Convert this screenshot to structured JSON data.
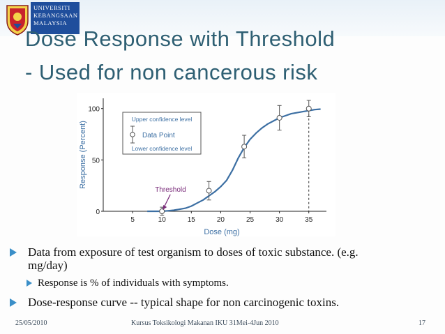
{
  "header": {
    "logo_lines": [
      "UNIVERSITI",
      "KEBANGSAAN",
      "MALAYSIA"
    ]
  },
  "slide": {
    "title_line1": "Dose Response with Threshold",
    "title_line2": "- Used for non cancerous risk"
  },
  "chart_data": {
    "type": "line",
    "title": "",
    "xlabel": "Dose (mg)",
    "ylabel": "Response (Percent)",
    "xlim": [
      0,
      38
    ],
    "ylim": [
      0,
      110
    ],
    "x_ticks": [
      5,
      10,
      15,
      20,
      25,
      30,
      35
    ],
    "y_ticks": [
      0,
      50,
      100
    ],
    "threshold_x": 10,
    "threshold_label": "Threshold",
    "dashed_x": 35,
    "curve": {
      "x": [
        10,
        11,
        12,
        13,
        14,
        15,
        16,
        17,
        18,
        19,
        20,
        21,
        22,
        23,
        24,
        25,
        26,
        27,
        28,
        29,
        30,
        31,
        32,
        33,
        34,
        35,
        36,
        37
      ],
      "y": [
        0,
        0.5,
        1,
        2,
        3,
        5,
        8,
        11,
        15,
        19,
        24,
        30,
        40,
        52,
        62,
        70,
        76,
        81,
        85,
        88,
        91,
        93,
        95,
        96,
        97,
        98,
        99,
        99.5
      ]
    },
    "data_points": [
      {
        "x": 10,
        "y": 0,
        "err": 4
      },
      {
        "x": 18,
        "y": 20,
        "err": 9
      },
      {
        "x": 24,
        "y": 63,
        "err": 11
      },
      {
        "x": 30,
        "y": 91,
        "err": 12
      },
      {
        "x": 35,
        "y": 100,
        "err": 8
      }
    ],
    "legend": {
      "upper": "Upper confidence level",
      "point": "Data Point",
      "lower": "Lower confidence level"
    },
    "colors": {
      "curve": "#3c6fa3",
      "axis_text": "#3c6fa3",
      "threshold_text": "#7a2c7a",
      "arrow": "#7a2c7a"
    }
  },
  "bullets": {
    "b1": "Data from exposure of test organism to doses of toxic substance.  (e.g. mg/day)",
    "b2": "Response is % of individuals with symptoms.",
    "b3": "Dose-response curve -- typical shape for non carcinogenic toxins."
  },
  "footer": {
    "date": "25/05/2010",
    "course": "Kursus Toksikologi Makanan IKU 31Mei-4Jun 2010",
    "page": "17"
  }
}
